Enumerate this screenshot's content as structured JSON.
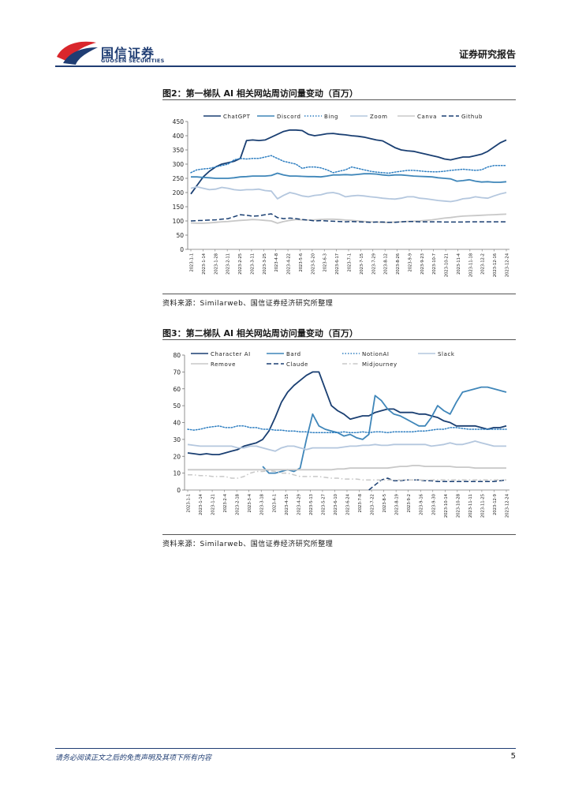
{
  "header": {
    "brand_cn": "国信证券",
    "brand_en": "GUOSEN SECURITIES",
    "report_label": "证券研究报告"
  },
  "colors": {
    "brand": "#1f3d73",
    "logo_red": "#d9262c",
    "logo_blue": "#1f3d73"
  },
  "figures": [
    {
      "title": "图2：第一梯队 AI 相关网站周访问量变动（百万）",
      "source": "资料来源：Similarweb、国信证券经济研究所整理"
    },
    {
      "title": "图3：第二梯队 AI 相关网站周访问量变动（百万）",
      "source": "资料来源：Similarweb、国信证券经济研究所整理"
    }
  ],
  "footer": {
    "disclaimer": "请务必阅读正文之后的免责声明及其项下所有内容",
    "page_number": "5"
  },
  "chart_data": [
    {
      "type": "line",
      "title": "图2：第一梯队 AI 相关网站周访问量变动（百万）",
      "xlabel": "",
      "ylabel": "",
      "ylim": [
        0,
        450
      ],
      "yticks": [
        0,
        50,
        100,
        150,
        200,
        250,
        300,
        350,
        400,
        450
      ],
      "grid": false,
      "legend_position": "top",
      "x": [
        "2023-1-1",
        "2023-1-8",
        "2023-1-15",
        "2023-1-22",
        "2023-1-29",
        "2023-2-5",
        "2023-2-12",
        "2023-2-19",
        "2023-2-26",
        "2023-3-5",
        "2023-3-12",
        "2023-3-19",
        "2023-3-26",
        "2023-4-2",
        "2023-4-9",
        "2023-4-16",
        "2023-4-23",
        "2023-4-30",
        "2023-5-7",
        "2023-5-14",
        "2023-5-21",
        "2023-5-28",
        "2023-6-4",
        "2023-6-11",
        "2023-6-18",
        "2023-6-25",
        "2023-7-2",
        "2023-7-9",
        "2023-7-16",
        "2023-7-23",
        "2023-7-30",
        "2023-8-6",
        "2023-8-13",
        "2023-8-20",
        "2023-8-27",
        "2023-9-3",
        "2023-9-10",
        "2023-9-17",
        "2023-9-24",
        "2023-10-1",
        "2023-10-8",
        "2023-10-15",
        "2023-10-22",
        "2023-10-29",
        "2023-11-5",
        "2023-11-12",
        "2023-11-19",
        "2023-11-26",
        "2023-12-3",
        "2023-12-10",
        "2023-12-17",
        "2023-12-24"
      ],
      "xticklabels": [
        "2023-1-1",
        "2023-1-14",
        "2023-1-28",
        "2023-2-11",
        "2023-2-25",
        "2023-3-11",
        "2023-3-25",
        "2023-4-8",
        "2023-4-22",
        "2023-5-6",
        "2023-5-20",
        "2023-6-3",
        "2023-6-17",
        "2023-7-1",
        "2023-7-15",
        "2023-7-29",
        "2023-8-12",
        "2023-8-26",
        "2023-9-9",
        "2023-9-23",
        "2023-10-7",
        "2023-10-21",
        "2023-11-4",
        "2023-11-18",
        "2023-12-2",
        "2023-12-16",
        "2023-12-24"
      ],
      "series": [
        {
          "name": "ChatGPT",
          "color": "#1a3f72",
          "dash": "solid",
          "values": [
            195,
            225,
            255,
            275,
            290,
            300,
            305,
            310,
            320,
            383,
            385,
            383,
            385,
            395,
            405,
            415,
            420,
            420,
            418,
            405,
            400,
            403,
            407,
            408,
            405,
            403,
            400,
            398,
            395,
            390,
            385,
            382,
            370,
            358,
            350,
            347,
            345,
            340,
            335,
            330,
            325,
            318,
            315,
            320,
            325,
            325,
            330,
            335,
            345,
            360,
            375,
            385
          ]
        },
        {
          "name": "Discord",
          "color": "#3f86b9",
          "dash": "solid",
          "values": [
            255,
            255,
            253,
            252,
            250,
            250,
            250,
            252,
            255,
            256,
            258,
            258,
            258,
            260,
            268,
            262,
            258,
            258,
            257,
            256,
            256,
            255,
            258,
            262,
            262,
            263,
            262,
            264,
            266,
            266,
            265,
            262,
            260,
            262,
            262,
            260,
            258,
            257,
            256,
            255,
            252,
            250,
            248,
            240,
            242,
            245,
            240,
            237,
            238,
            236,
            236,
            238
          ]
        },
        {
          "name": "Bing",
          "color": "#2f7fc1",
          "dash": "dotted",
          "values": [
            270,
            280,
            283,
            285,
            290,
            295,
            300,
            315,
            320,
            318,
            320,
            320,
            325,
            330,
            320,
            310,
            305,
            300,
            285,
            290,
            290,
            287,
            280,
            270,
            275,
            280,
            290,
            285,
            280,
            275,
            272,
            270,
            268,
            272,
            275,
            278,
            278,
            276,
            274,
            273,
            273,
            275,
            278,
            280,
            282,
            280,
            278,
            280,
            290,
            295,
            295,
            295
          ]
        },
        {
          "name": "Zoom",
          "color": "#b4c7de",
          "dash": "solid",
          "values": [
            215,
            220,
            215,
            210,
            212,
            218,
            215,
            210,
            208,
            210,
            210,
            212,
            207,
            205,
            178,
            190,
            200,
            195,
            188,
            185,
            190,
            192,
            198,
            200,
            195,
            185,
            188,
            190,
            188,
            185,
            183,
            180,
            178,
            177,
            180,
            185,
            185,
            180,
            178,
            175,
            172,
            170,
            168,
            172,
            178,
            180,
            185,
            182,
            180,
            188,
            195,
            200
          ]
        },
        {
          "name": "Canva",
          "color": "#c8c8c8",
          "dash": "solid",
          "values": [
            93,
            92,
            92,
            93,
            95,
            97,
            98,
            100,
            102,
            103,
            105,
            104,
            102,
            100,
            92,
            98,
            102,
            105,
            104,
            103,
            104,
            105,
            106,
            106,
            105,
            103,
            102,
            100,
            98,
            97,
            96,
            95,
            95,
            96,
            97,
            98,
            99,
            100,
            102,
            104,
            107,
            110,
            112,
            115,
            117,
            118,
            119,
            120,
            121,
            122,
            123,
            124
          ]
        },
        {
          "name": "Github",
          "color": "#1a3f72",
          "dash": "dashed",
          "values": [
            100,
            101,
            102,
            103,
            104,
            106,
            108,
            115,
            122,
            120,
            117,
            118,
            122,
            125,
            112,
            108,
            110,
            108,
            105,
            103,
            100,
            101,
            100,
            99,
            98,
            97,
            98,
            97,
            96,
            95,
            96,
            96,
            95,
            95,
            97,
            98,
            98,
            97,
            97,
            97,
            97,
            96,
            96,
            96,
            96,
            97,
            97,
            97,
            97,
            97,
            97,
            97
          ]
        }
      ]
    },
    {
      "type": "line",
      "title": "图3：第二梯队 AI 相关网站周访问量变动（百万）",
      "xlabel": "",
      "ylabel": "",
      "ylim": [
        0,
        80
      ],
      "yticks": [
        0,
        10,
        20,
        30,
        40,
        50,
        60,
        70,
        80
      ],
      "grid": false,
      "legend_position": "top",
      "x": [
        "2023-1-1",
        "2023-1-8",
        "2023-1-15",
        "2023-1-22",
        "2023-1-29",
        "2023-2-5",
        "2023-2-12",
        "2023-2-19",
        "2023-2-26",
        "2023-3-5",
        "2023-3-12",
        "2023-3-19",
        "2023-3-26",
        "2023-4-2",
        "2023-4-9",
        "2023-4-16",
        "2023-4-23",
        "2023-4-30",
        "2023-5-7",
        "2023-5-14",
        "2023-5-21",
        "2023-5-28",
        "2023-6-4",
        "2023-6-11",
        "2023-6-18",
        "2023-6-25",
        "2023-7-2",
        "2023-7-9",
        "2023-7-16",
        "2023-7-23",
        "2023-7-30",
        "2023-8-6",
        "2023-8-13",
        "2023-8-20",
        "2023-8-27",
        "2023-9-3",
        "2023-9-10",
        "2023-9-17",
        "2023-9-24",
        "2023-10-1",
        "2023-10-8",
        "2023-10-15",
        "2023-10-22",
        "2023-10-29",
        "2023-11-5",
        "2023-11-12",
        "2023-11-19",
        "2023-11-26",
        "2023-12-3",
        "2023-12-10",
        "2023-12-17",
        "2023-12-24"
      ],
      "xticklabels": [
        "2023-1-1",
        "2023-1-14",
        "2023-1-21",
        "2023-2-4",
        "2023-2-18",
        "2023-3-4",
        "2023-3-18",
        "2023-4-1",
        "2023-4-15",
        "2023-4-29",
        "2023-5-13",
        "2023-5-27",
        "2023-6-10",
        "2023-6-24",
        "2023-7-8",
        "2023-7-22",
        "2023-8-5",
        "2023-8-19",
        "2023-9-2",
        "2023-9-16",
        "2023-9-30",
        "2023-10-14",
        "2023-10-28",
        "2023-11-11",
        "2023-11-25",
        "2023-12-9",
        "2023-12-24"
      ],
      "series": [
        {
          "name": "Character AI",
          "color": "#1a3f72",
          "dash": "solid",
          "values": [
            22,
            21.5,
            21,
            21.5,
            21,
            21,
            22,
            23,
            24,
            26,
            27,
            28,
            30,
            35,
            43,
            52,
            58,
            62,
            65,
            68,
            70,
            70,
            60,
            50,
            47,
            45,
            42,
            43,
            44,
            44,
            46,
            47,
            48,
            48,
            46,
            46,
            46,
            45,
            45,
            44,
            43,
            41,
            40,
            38,
            38,
            38,
            38,
            37,
            36,
            37,
            37,
            38
          ]
        },
        {
          "name": "Bard",
          "color": "#3f86b9",
          "dash": "solid",
          "values": [
            null,
            null,
            null,
            null,
            null,
            null,
            null,
            null,
            null,
            null,
            null,
            null,
            14,
            10,
            10,
            11,
            12,
            11,
            13,
            30,
            45,
            38,
            36,
            35,
            34,
            32,
            33,
            31,
            30,
            33,
            56,
            53,
            48,
            45,
            44,
            42,
            40,
            38,
            38,
            43,
            50,
            47,
            45,
            52,
            58,
            59,
            60,
            61,
            61,
            60,
            59,
            58
          ]
        },
        {
          "name": "NotionAI",
          "color": "#2f7fc1",
          "dash": "dotted",
          "values": [
            36,
            35.5,
            36,
            37,
            37.5,
            38,
            37,
            37,
            38,
            38,
            37,
            37,
            36,
            36,
            35.5,
            35.5,
            35,
            35,
            34.5,
            34.5,
            34,
            34,
            34,
            34,
            34,
            34.5,
            34,
            34,
            34.5,
            34,
            34.5,
            34.5,
            34,
            34.5,
            34.5,
            34.5,
            34.5,
            35,
            35,
            35.5,
            36,
            36,
            37,
            37,
            36.5,
            36,
            36,
            36,
            36,
            36,
            36,
            36
          ]
        },
        {
          "name": "Slack",
          "color": "#b4c7de",
          "dash": "solid",
          "values": [
            27,
            26.5,
            26,
            26,
            26,
            26,
            26,
            26,
            25,
            25,
            26,
            26,
            25,
            24,
            23,
            25,
            26,
            26,
            25,
            24,
            25,
            25,
            25,
            25,
            25,
            25.5,
            26,
            26,
            26.5,
            26.5,
            27,
            26.5,
            26.5,
            27,
            27,
            27,
            27,
            27,
            27,
            26,
            26.5,
            27,
            28,
            27,
            27,
            28,
            29,
            28,
            27,
            26,
            26,
            26
          ]
        },
        {
          "name": "Remove",
          "color": "#c8c8c8",
          "dash": "solid",
          "values": [
            12,
            12,
            12,
            12,
            12,
            12,
            12,
            12,
            12,
            12,
            12,
            12,
            12,
            12,
            12,
            12,
            12,
            12,
            12,
            12,
            12,
            12,
            12,
            12,
            12.5,
            12.5,
            13,
            13,
            13,
            13,
            13,
            13,
            13,
            13.5,
            14,
            14,
            14.5,
            14.5,
            14,
            14,
            14,
            14,
            14,
            13.5,
            13.5,
            13.5,
            13,
            13,
            13,
            13,
            13,
            13
          ]
        },
        {
          "name": "Claude",
          "color": "#1a3f72",
          "dash": "dashed",
          "values": [
            null,
            null,
            null,
            null,
            null,
            null,
            null,
            null,
            null,
            null,
            null,
            null,
            null,
            null,
            null,
            null,
            null,
            null,
            null,
            null,
            null,
            null,
            null,
            null,
            null,
            null,
            null,
            null,
            null,
            0,
            3,
            6,
            7,
            5.5,
            5.5,
            6,
            6,
            6,
            5.5,
            5.5,
            5,
            5,
            5,
            5,
            5,
            5,
            5,
            5,
            5,
            5,
            5.5,
            6
          ]
        },
        {
          "name": "Midjourney",
          "color": "#c8c8c8",
          "dash": "dashdot",
          "values": [
            9,
            9,
            8.5,
            8.5,
            8,
            8,
            8,
            7,
            7,
            8,
            10,
            11,
            11,
            11.5,
            11,
            10,
            10,
            9,
            8,
            8,
            8,
            8,
            7.5,
            7,
            7,
            6.5,
            6.5,
            6.5,
            6,
            6,
            6,
            6,
            6,
            6,
            6,
            6,
            6,
            6,
            6,
            6,
            6,
            6,
            6,
            6,
            6,
            6,
            6,
            6,
            6,
            6,
            6,
            6
          ]
        }
      ]
    }
  ]
}
